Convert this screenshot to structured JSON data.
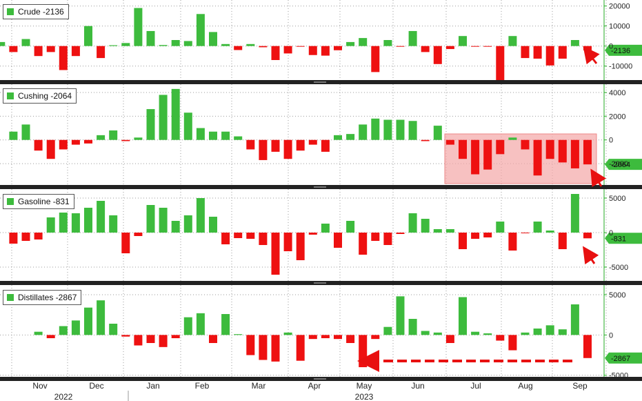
{
  "colors": {
    "positive": "#3dbb3d",
    "negative": "#ee1111",
    "axis": "#22aa22",
    "grid": "#999999",
    "separator": "#222222",
    "highlight": "#f4a6a6",
    "arrow": "#e81010"
  },
  "x_axis": {
    "month_labels": [
      "Nov",
      "Dec",
      "Jan",
      "Feb",
      "Mar",
      "Apr",
      "May",
      "Jun",
      "Jul",
      "Aug",
      "Sep"
    ],
    "year_labels": [
      "2022",
      "2023"
    ]
  },
  "chart_data": [
    {
      "type": "bar",
      "name": "crude",
      "legend": "Crude  -2136",
      "last_value_label": "-2136",
      "ylim": [
        -17000,
        23000
      ],
      "yticks": [
        20000,
        10000,
        0,
        -10000
      ],
      "ytick_labels": [
        "20000",
        "10000",
        "0",
        "-10000"
      ],
      "values": [
        2000,
        -3000,
        3500,
        -5000,
        -3000,
        -12000,
        -5000,
        10000,
        -6000,
        400,
        1500,
        19000,
        7500,
        500,
        3000,
        2500,
        16000,
        7000,
        1000,
        -2000,
        1000,
        -600,
        -7000,
        -3700,
        -100,
        -4500,
        -4800,
        -2100,
        2000,
        4000,
        -13000,
        3000,
        -200,
        7500,
        -3000,
        -9000,
        -1500,
        5000,
        -200,
        -200,
        -17000,
        5000,
        -6000,
        -6300,
        -9700,
        -6300,
        3000,
        -2136
      ]
    },
    {
      "type": "bar",
      "name": "cushing",
      "legend": "Cushing  -2064",
      "last_value_label": "-2064",
      "ylim": [
        -3800,
        4700
      ],
      "yticks": [
        4000,
        2000,
        0,
        -2000
      ],
      "ytick_labels": [
        "4000",
        "2000",
        "0",
        "-2000"
      ],
      "values": [
        700,
        1300,
        -900,
        -1600,
        -800,
        -400,
        -300,
        400,
        800,
        -100,
        200,
        2600,
        3800,
        4300,
        2300,
        1000,
        700,
        700,
        300,
        -800,
        -1700,
        -1000,
        -1600,
        -900,
        -400,
        -1000,
        400,
        500,
        1300,
        1800,
        1700,
        1700,
        1600,
        -100,
        1200,
        -400,
        -1600,
        -2900,
        -2500,
        -1200,
        200,
        -800,
        -3000,
        -1600,
        -1900,
        -2400,
        -2064
      ]
    },
    {
      "type": "bar",
      "name": "gasoline",
      "legend": "Gasoline  -831",
      "last_value_label": "-831",
      "ylim": [
        -7000,
        6300
      ],
      "yticks": [
        5000,
        0,
        -5000
      ],
      "ytick_labels": [
        "5000",
        "0",
        "-5000"
      ],
      "values": [
        -1600,
        -1200,
        -1000,
        2200,
        2900,
        2800,
        3600,
        4600,
        2500,
        -3000,
        -500,
        4000,
        3600,
        1700,
        2500,
        5000,
        2300,
        -1700,
        -800,
        -900,
        -1800,
        -6100,
        -2700,
        -4000,
        -300,
        1300,
        -2200,
        1700,
        -3200,
        -1200,
        -1800,
        -200,
        2800,
        2000,
        500,
        500,
        -2400,
        -900,
        -700,
        1600,
        -2600,
        -100,
        1600,
        300,
        -2400,
        5600,
        -831
      ]
    },
    {
      "type": "bar",
      "name": "distillates",
      "legend": "Distillates  -2867",
      "last_value_label": "-2867",
      "ylim": [
        -5200,
        6200
      ],
      "yticks": [
        5000,
        0,
        -5000
      ],
      "ytick_labels": [
        "5000",
        "0",
        "-5000"
      ],
      "values": [
        400,
        -400,
        1100,
        1800,
        3400,
        4300,
        1400,
        -200,
        -1300,
        -1000,
        -1500,
        -400,
        2200,
        2700,
        -1000,
        2600,
        100,
        -2500,
        -3100,
        -3300,
        300,
        -3200,
        -500,
        -400,
        -500,
        -1000,
        -4000,
        -500,
        1000,
        4800,
        2000,
        500,
        300,
        -1000,
        4700,
        400,
        200,
        -700,
        -1900,
        300,
        800,
        1200,
        700,
        3800,
        -2867
      ]
    }
  ]
}
